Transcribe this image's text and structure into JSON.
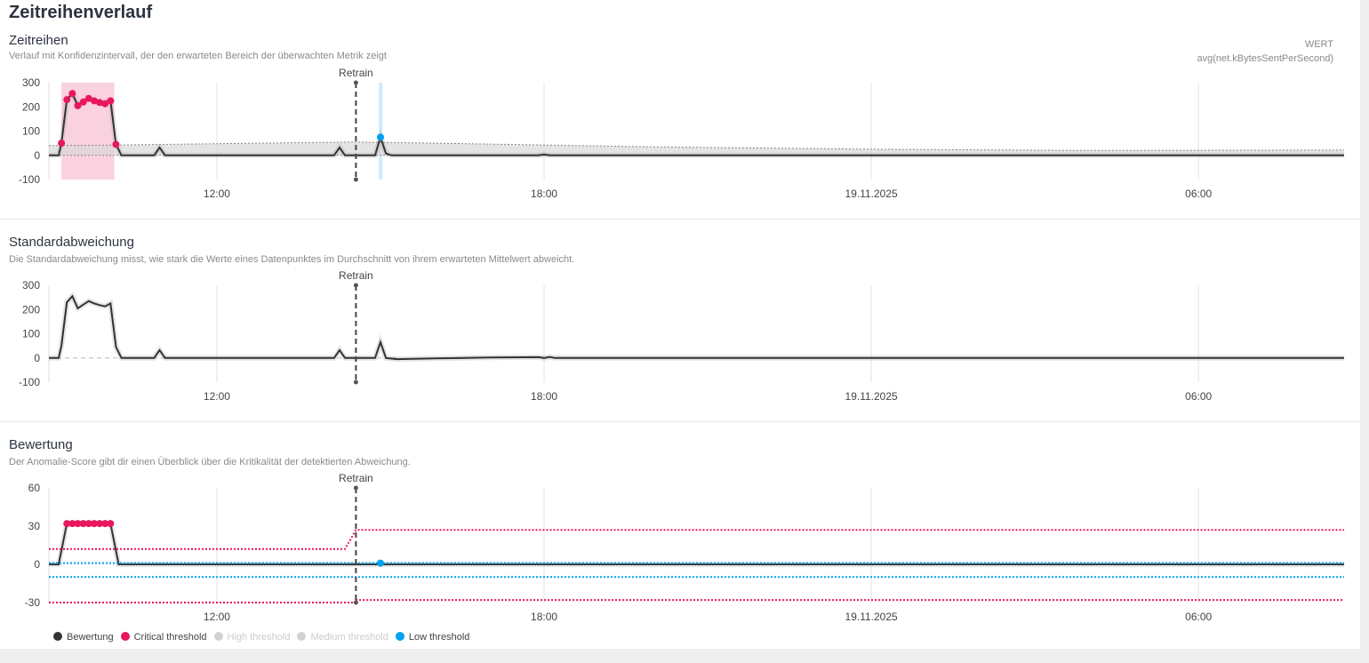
{
  "title": "Zeitreihenverlauf",
  "wert_label": "WERT",
  "metric": "avg(net.kBytesSentPerSecond)",
  "colors": {
    "line": "#333333",
    "critical": "#e8175d",
    "low": "#00a1f0",
    "band": "#d9d9d9",
    "disabled": "#d0d2d6"
  },
  "x_ticks": [
    {
      "t": 12,
      "label": "12:00"
    },
    {
      "t": 18,
      "label": "18:00"
    },
    {
      "t": 24,
      "label": "19.11.2025"
    },
    {
      "t": 30,
      "label": "06:00"
    }
  ],
  "x_range": [
    8.92,
    32.67
  ],
  "retrain": {
    "t": 14.55,
    "label": "Retrain"
  },
  "chart_data": [
    {
      "type": "line",
      "title": "Zeitreihen",
      "description": "Verlauf mit Konfidenzintervall, der den erwarteten Bereich der überwachten Metrik zeigt",
      "ylim": [
        -100,
        300
      ],
      "yticks": [
        "300",
        "200",
        "100",
        "0",
        "-100"
      ],
      "critical_region": [
        9.15,
        10.12
      ],
      "low_region": [
        14.97,
        15.03
      ],
      "series": [
        {
          "name": "avg(net.kBytesSentPerSecond)",
          "points": [
            [
              8.92,
              0
            ],
            [
              9.1,
              0
            ],
            [
              9.15,
              50
            ],
            [
              9.25,
              230
            ],
            [
              9.35,
              255
            ],
            [
              9.45,
              205
            ],
            [
              9.55,
              220
            ],
            [
              9.65,
              235
            ],
            [
              9.75,
              225
            ],
            [
              9.85,
              218
            ],
            [
              9.95,
              213
            ],
            [
              10.05,
              225
            ],
            [
              10.15,
              45
            ],
            [
              10.25,
              0
            ],
            [
              10.85,
              0
            ],
            [
              10.95,
              32
            ],
            [
              11.05,
              0
            ],
            [
              14.15,
              0
            ],
            [
              14.25,
              32
            ],
            [
              14.35,
              0
            ],
            [
              14.9,
              0
            ],
            [
              15.0,
              75
            ],
            [
              15.1,
              8
            ],
            [
              15.2,
              0
            ],
            [
              17.9,
              0
            ],
            [
              18.0,
              3
            ],
            [
              18.1,
              0
            ],
            [
              32.67,
              0
            ]
          ]
        }
      ],
      "critical_points": [
        [
          9.15,
          50
        ],
        [
          9.25,
          230
        ],
        [
          9.35,
          255
        ],
        [
          9.45,
          205
        ],
        [
          9.55,
          220
        ],
        [
          9.65,
          235
        ],
        [
          9.75,
          225
        ],
        [
          9.85,
          218
        ],
        [
          9.95,
          213
        ],
        [
          10.05,
          225
        ],
        [
          10.15,
          45
        ]
      ],
      "low_points": [
        [
          15.0,
          75
        ]
      ],
      "band_upper": [
        [
          8.92,
          40
        ],
        [
          10,
          42
        ],
        [
          12,
          48
        ],
        [
          14.5,
          55
        ],
        [
          16,
          50
        ],
        [
          20,
          35
        ],
        [
          24,
          25
        ],
        [
          28,
          20
        ],
        [
          32.67,
          22
        ]
      ],
      "band_lower": [
        [
          8.92,
          0
        ],
        [
          32.67,
          0
        ]
      ]
    },
    {
      "type": "line",
      "title": "Standardabweichung",
      "description": "Die Standardabweichung misst, wie stark die Werte eines Datenpunktes im Durchschnitt von ihrem erwarteten Mittelwert abweicht.",
      "ylim": [
        -100,
        300
      ],
      "yticks": [
        "300",
        "200",
        "100",
        "0",
        "-100"
      ],
      "series": [
        {
          "name": "Standardabweichung",
          "points": [
            [
              8.92,
              0
            ],
            [
              9.1,
              0
            ],
            [
              9.15,
              50
            ],
            [
              9.25,
              230
            ],
            [
              9.35,
              255
            ],
            [
              9.45,
              205
            ],
            [
              9.55,
              220
            ],
            [
              9.65,
              235
            ],
            [
              9.75,
              225
            ],
            [
              9.85,
              218
            ],
            [
              9.95,
              213
            ],
            [
              10.05,
              225
            ],
            [
              10.15,
              45
            ],
            [
              10.25,
              0
            ],
            [
              10.85,
              0
            ],
            [
              10.95,
              32
            ],
            [
              11.05,
              0
            ],
            [
              14.15,
              0
            ],
            [
              14.25,
              32
            ],
            [
              14.35,
              0
            ],
            [
              14.9,
              0
            ],
            [
              15.0,
              65
            ],
            [
              15.1,
              0
            ],
            [
              15.3,
              -5
            ],
            [
              16,
              -2
            ],
            [
              17,
              2
            ],
            [
              17.9,
              3
            ],
            [
              18.0,
              0
            ],
            [
              18.1,
              4
            ],
            [
              18.2,
              0
            ],
            [
              32.67,
              0
            ]
          ]
        }
      ],
      "baseline": [
        [
          8.92,
          0
        ],
        [
          15.3,
          0
        ]
      ]
    },
    {
      "type": "line",
      "title": "Bewertung",
      "description": "Der Anomalie-Score gibt dir einen Überblick über die Kritikalität der detektierten Abweichung.",
      "ylim": [
        -30,
        60
      ],
      "yticks": [
        "60",
        "30",
        "0",
        "-30"
      ],
      "series": [
        {
          "name": "Bewertung",
          "points": [
            [
              8.92,
              0
            ],
            [
              9.1,
              0
            ],
            [
              9.25,
              32
            ],
            [
              10.05,
              32
            ],
            [
              10.2,
              0
            ],
            [
              32.67,
              0
            ]
          ]
        },
        {
          "name": "Critical threshold",
          "points": [
            [
              8.92,
              12
            ],
            [
              14.35,
              12
            ],
            [
              14.55,
              27
            ],
            [
              32.67,
              27
            ]
          ]
        },
        {
          "name": "Critical threshold lower",
          "points": [
            [
              8.92,
              -30
            ],
            [
              14.55,
              -30
            ],
            [
              14.55,
              -28
            ],
            [
              32.67,
              -28
            ]
          ]
        },
        {
          "name": "Low threshold",
          "points": [
            [
              8.92,
              1
            ],
            [
              32.67,
              1
            ]
          ]
        },
        {
          "name": "Low threshold lower",
          "points": [
            [
              8.92,
              -10
            ],
            [
              32.67,
              -10
            ]
          ]
        }
      ],
      "critical_points": [
        [
          9.25,
          32
        ],
        [
          9.35,
          32
        ],
        [
          9.45,
          32
        ],
        [
          9.55,
          32
        ],
        [
          9.65,
          32
        ],
        [
          9.75,
          32
        ],
        [
          9.85,
          32
        ],
        [
          9.95,
          32
        ],
        [
          10.05,
          32
        ]
      ],
      "low_points": [
        [
          15.0,
          1
        ]
      ],
      "legend": [
        {
          "label": "Bewertung",
          "color": "#333333",
          "active": true
        },
        {
          "label": "Critical threshold",
          "color": "#e8175d",
          "active": true
        },
        {
          "label": "High threshold",
          "color": "#d0d2d6",
          "active": false
        },
        {
          "label": "Medium threshold",
          "color": "#d0d2d6",
          "active": false
        },
        {
          "label": "Low threshold",
          "color": "#00a1f0",
          "active": true
        }
      ]
    }
  ]
}
